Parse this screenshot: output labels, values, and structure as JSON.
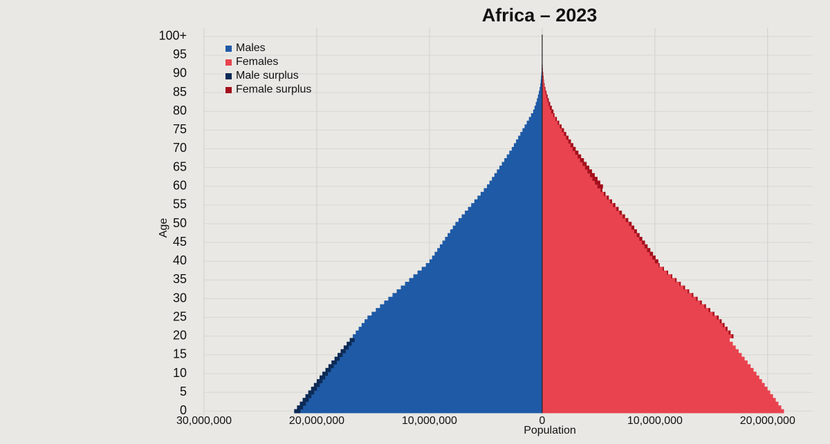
{
  "chart_data": {
    "type": "pyramid",
    "title": "Africa – 2023",
    "x_label": "Population",
    "y_label": "Age",
    "y": [
      0,
      1,
      2,
      3,
      4,
      5,
      6,
      7,
      8,
      9,
      10,
      11,
      12,
      13,
      14,
      15,
      16,
      17,
      18,
      19,
      20,
      21,
      22,
      23,
      24,
      25,
      26,
      27,
      28,
      29,
      30,
      31,
      32,
      33,
      34,
      35,
      36,
      37,
      38,
      39,
      40,
      41,
      42,
      43,
      44,
      45,
      46,
      47,
      48,
      49,
      50,
      51,
      52,
      53,
      54,
      55,
      56,
      57,
      58,
      59,
      60,
      61,
      62,
      63,
      64,
      65,
      66,
      67,
      68,
      69,
      70,
      71,
      72,
      73,
      74,
      75,
      76,
      77,
      78,
      79,
      80,
      81,
      82,
      83,
      84,
      85,
      86,
      87,
      88,
      89,
      90,
      91,
      92,
      93,
      94,
      95,
      96,
      97,
      98,
      99,
      100
    ],
    "series": [
      {
        "name": "Males",
        "color": "#1f5aa6",
        "side": "left",
        "values": [
          22000000,
          21750000,
          21500000,
          21250000,
          21000000,
          20750000,
          20500000,
          20250000,
          20000000,
          19750000,
          19500000,
          19230000,
          18960000,
          18690000,
          18420000,
          18150000,
          17880000,
          17610000,
          17340000,
          17070000,
          16800000,
          16540000,
          16280000,
          16020000,
          15760000,
          15500000,
          15130000,
          14760000,
          14390000,
          14020000,
          13650000,
          13280000,
          12910000,
          12540000,
          12170000,
          11800000,
          11430000,
          11060000,
          10690000,
          10320000,
          10000000,
          9770000,
          9540000,
          9310000,
          9080000,
          8850000,
          8620000,
          8390000,
          8160000,
          7930000,
          7700000,
          7420000,
          7140000,
          6860000,
          6580000,
          6300000,
          6020000,
          5740000,
          5460000,
          5180000,
          4900000,
          4680000,
          4460000,
          4240000,
          4020000,
          3800000,
          3580000,
          3360000,
          3140000,
          2920000,
          2700000,
          2510000,
          2320000,
          2130000,
          1940000,
          1750000,
          1560000,
          1370000,
          1180000,
          990000,
          800000,
          680000,
          570000,
          470000,
          380000,
          300000,
          230000,
          170000,
          130000,
          100000,
          70000,
          50000,
          35000,
          25000,
          17000,
          11000,
          7000,
          5000,
          3000,
          2000,
          3000
        ]
      },
      {
        "name": "Females",
        "color": "#e8434f",
        "side": "right",
        "values": [
          21450000,
          21210000,
          20960000,
          20720000,
          20480000,
          20230000,
          19990000,
          19740000,
          19500000,
          19260000,
          19010000,
          18750000,
          18490000,
          18220000,
          17960000,
          17700000,
          17430000,
          17170000,
          16910000,
          16640000,
          16970000,
          16710000,
          16440000,
          16180000,
          15920000,
          15660000,
          15280000,
          14910000,
          14530000,
          14160000,
          13790000,
          13410000,
          13040000,
          12670000,
          12290000,
          11920000,
          11540000,
          11170000,
          10800000,
          10420000,
          10300000,
          10060000,
          9830000,
          9590000,
          9350000,
          9120000,
          8880000,
          8640000,
          8400000,
          8170000,
          7930000,
          7640000,
          7350000,
          7070000,
          6780000,
          6490000,
          6200000,
          5910000,
          5620000,
          5340000,
          5390000,
          5150000,
          4910000,
          4660000,
          4420000,
          4180000,
          3940000,
          3700000,
          3450000,
          3210000,
          2970000,
          2760000,
          2550000,
          2340000,
          2130000,
          1930000,
          1720000,
          1510000,
          1300000,
          1090000,
          1000000,
          850000,
          710000,
          590000,
          480000,
          380000,
          290000,
          210000,
          160000,
          130000,
          90000,
          60000,
          44000,
          31000,
          21000,
          14000,
          9000,
          6000,
          4000,
          3000,
          4000
        ]
      }
    ],
    "surplus": [
      {
        "name": "Male surplus",
        "color": "#0d2a55"
      },
      {
        "name": "Female surplus",
        "color": "#a3101c"
      }
    ],
    "xlim": [
      -30000000,
      24000000
    ],
    "xticks": [
      {
        "value": -30000000,
        "label": "30,000,000"
      },
      {
        "value": -20000000,
        "label": "20,000,000"
      },
      {
        "value": -10000000,
        "label": "10,000,000"
      },
      0,
      {
        "value": 10000000,
        "label": "10,000,000"
      },
      {
        "value": 20000000,
        "label": "20,000,000"
      }
    ],
    "ylim": [
      -0.5,
      100.5
    ],
    "yticks": [
      0,
      5,
      10,
      15,
      20,
      25,
      30,
      35,
      40,
      45,
      50,
      55,
      60,
      65,
      70,
      75,
      80,
      85,
      90,
      95,
      {
        "value": 100,
        "label": "100+"
      }
    ],
    "grid": true
  }
}
